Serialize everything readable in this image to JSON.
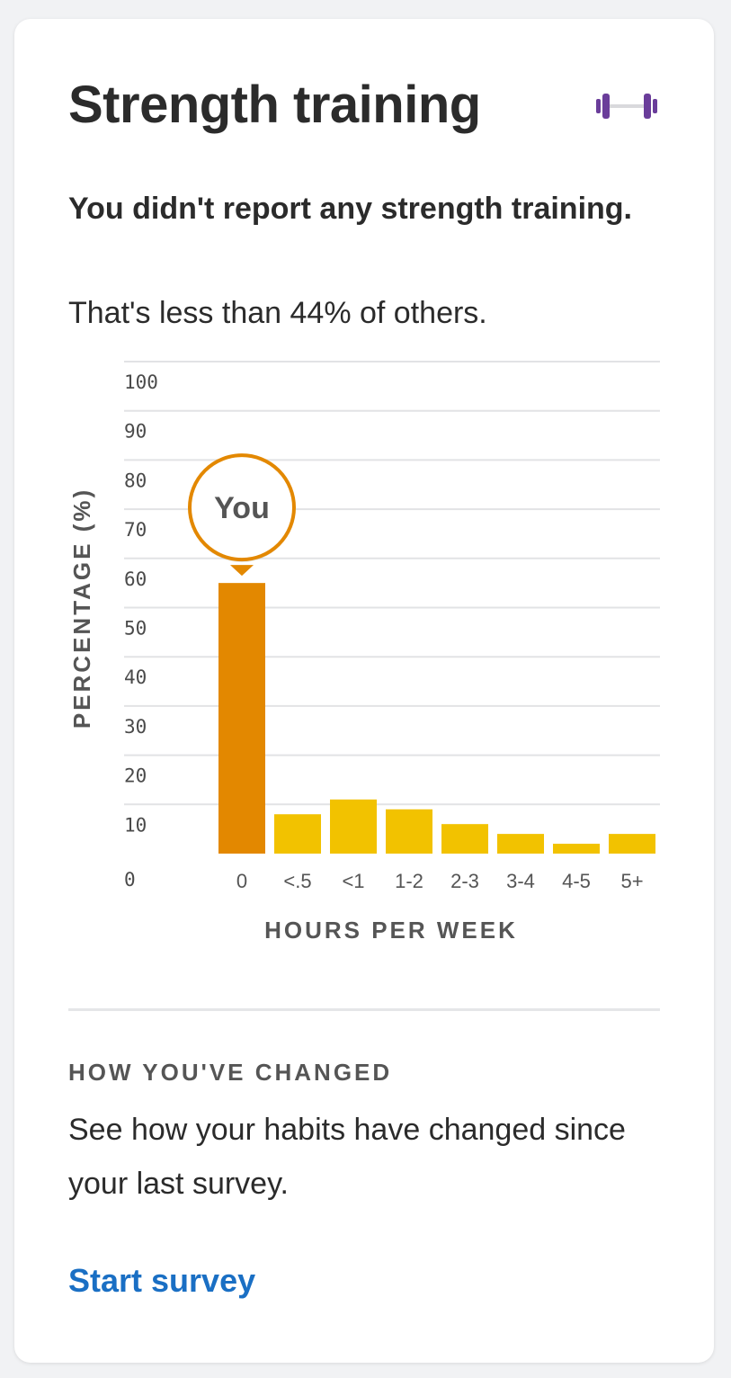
{
  "card": {
    "title": "Strength training",
    "icon": "dumbbell-icon",
    "headline": "You didn't report any strength training.",
    "subtext": "That's less than 44% of others."
  },
  "chart_data": {
    "type": "bar",
    "title": "",
    "xlabel": "HOURS PER WEEK",
    "ylabel": "PERCENTAGE (%)",
    "ylim": [
      0,
      100
    ],
    "yticks": [
      "0",
      "10",
      "20",
      "30",
      "40",
      "50",
      "60",
      "70",
      "80",
      "90",
      "100"
    ],
    "categories": [
      "0",
      "<.5",
      "<1",
      "1-2",
      "2-3",
      "3-4",
      "4-5",
      "5+"
    ],
    "values": [
      55,
      8,
      11,
      9,
      6,
      4,
      2,
      4
    ],
    "highlight_index": 0,
    "highlight_label": "You",
    "grid": true,
    "colors": {
      "highlight": "#e38800",
      "bars": "#f2c200",
      "marker_border": "#e38800",
      "grid": "#e2e3e5"
    }
  },
  "changes": {
    "label": "HOW YOU'VE CHANGED",
    "text": "See how your habits have changed since your last survey.",
    "cta": "Start survey",
    "cta_color": "#1a6fc4"
  }
}
